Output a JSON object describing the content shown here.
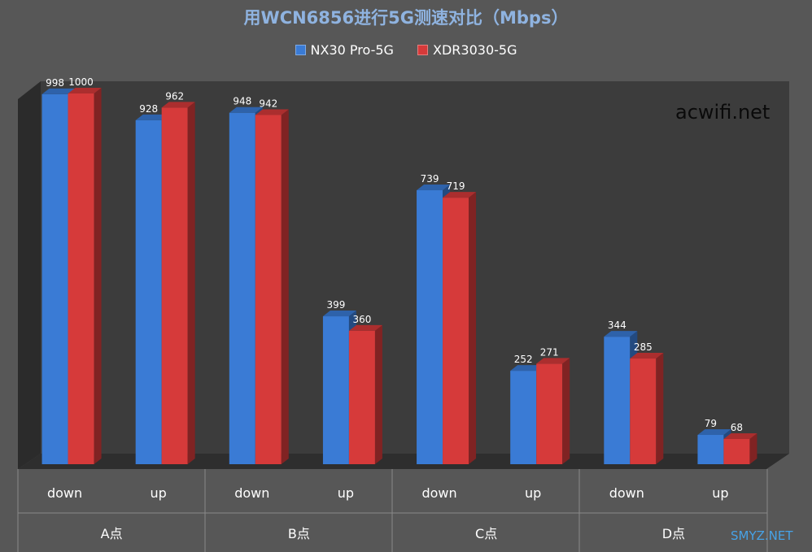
{
  "chart_data": {
    "type": "bar",
    "title": "用WCN6856进行5G测速对比（Mbps）",
    "groups": [
      "A点",
      "B点",
      "C点",
      "D点"
    ],
    "categories": [
      "down",
      "up",
      "down",
      "up",
      "down",
      "up",
      "down",
      "up"
    ],
    "series": [
      {
        "name": "NX30 Pro-5G",
        "color": "#3a7bd5",
        "values": [
          998,
          928,
          948,
          399,
          739,
          252,
          344,
          79
        ]
      },
      {
        "name": "XDR3030-5G",
        "color": "#d63a3a",
        "values": [
          1000,
          962,
          942,
          360,
          719,
          271,
          285,
          68
        ]
      }
    ],
    "ylim": [
      0,
      1000
    ],
    "legend": "top",
    "grid": false
  },
  "watermark": "acwifi.net",
  "site_mark": "SMYZ.NET"
}
